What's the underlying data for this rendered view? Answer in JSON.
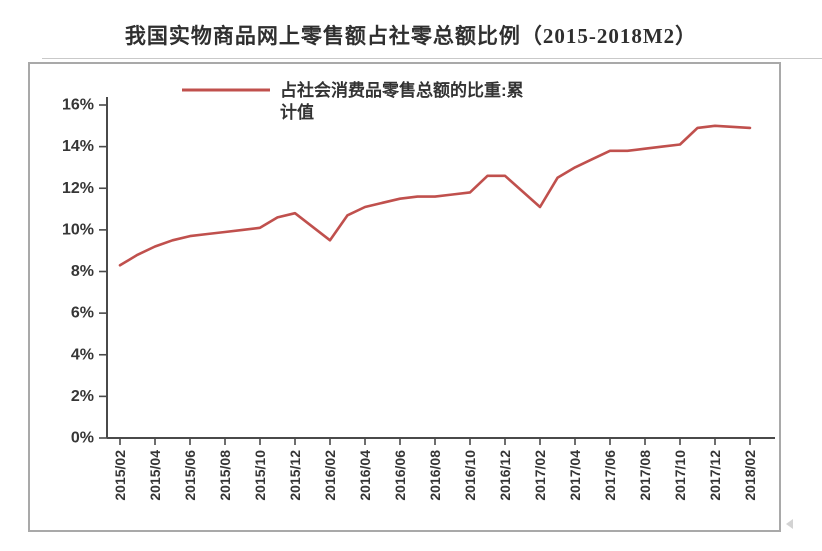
{
  "title": "我国实物商品网上零售额占社零总额比例（2015-2018M2）",
  "legend": {
    "line1": "占社会消费品零售总额的比重:累",
    "line2": "计值"
  },
  "colors": {
    "line": "#c0504d",
    "axis": "#4a4a4a",
    "label": "#363636",
    "box_border": "#a9a9a9"
  },
  "chart_data": {
    "type": "line",
    "title": "我国实物商品网上零售额占社零总额比例（2015-2018M2）",
    "xlabel": "",
    "ylabel": "",
    "ylim": [
      0,
      16
    ],
    "y_tick_step": 2,
    "grid": false,
    "legend_position": "top-center",
    "y_tick_labels": [
      "0%",
      "2%",
      "4%",
      "6%",
      "8%",
      "10%",
      "12%",
      "14%",
      "16%"
    ],
    "x_tick_labels": [
      "2015/02",
      "2015/04",
      "2015/06",
      "2015/08",
      "2015/10",
      "2015/12",
      "2016/02",
      "2016/04",
      "2016/06",
      "2016/08",
      "2016/10",
      "2016/12",
      "2017/02",
      "2017/04",
      "2017/06",
      "2017/08",
      "2017/10",
      "2017/12",
      "2018/02"
    ],
    "x": [
      "2015/02",
      "2015/03",
      "2015/04",
      "2015/05",
      "2015/06",
      "2015/07",
      "2015/08",
      "2015/09",
      "2015/10",
      "2015/11",
      "2015/12",
      "2016/02",
      "2016/03",
      "2016/04",
      "2016/05",
      "2016/06",
      "2016/07",
      "2016/08",
      "2016/09",
      "2016/10",
      "2016/11",
      "2016/12",
      "2017/02",
      "2017/03",
      "2017/04",
      "2017/05",
      "2017/06",
      "2017/07",
      "2017/08",
      "2017/09",
      "2017/10",
      "2017/11",
      "2017/12",
      "2018/02"
    ],
    "series": [
      {
        "name": "占社会消费品零售总额的比重:累计值",
        "color": "#c0504d",
        "unit": "%",
        "values": [
          8.3,
          8.8,
          9.2,
          9.5,
          9.7,
          9.8,
          9.9,
          10.0,
          10.1,
          10.6,
          10.8,
          9.5,
          10.7,
          11.1,
          11.3,
          11.5,
          11.6,
          11.6,
          11.7,
          11.8,
          12.6,
          12.6,
          11.1,
          12.5,
          13.0,
          13.4,
          13.8,
          13.8,
          13.9,
          14.0,
          14.1,
          14.9,
          15.0,
          14.9
        ]
      }
    ]
  }
}
